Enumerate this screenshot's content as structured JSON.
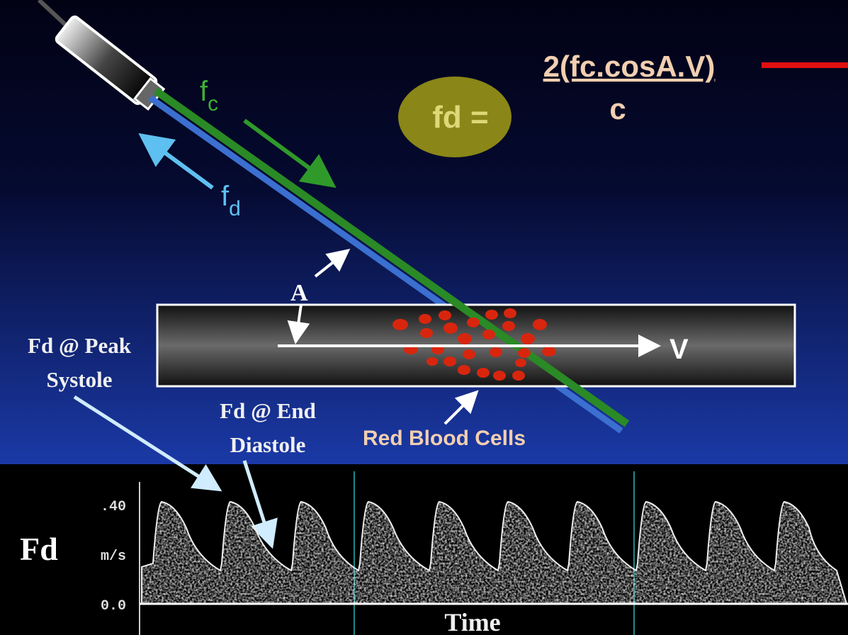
{
  "formula": {
    "lhs": "fd =",
    "numerator": "2(fc.cosA.V)",
    "denominator": "c"
  },
  "beam": {
    "transmit": {
      "main": "f",
      "sub": "c"
    },
    "received": {
      "main": "f",
      "sub": "d"
    }
  },
  "vessel": {
    "angle_label": "A",
    "velocity_label": "V",
    "cells_label": "Red Blood Cells"
  },
  "callouts": {
    "peak": [
      "Fd @ Peak",
      "Systole"
    ],
    "end": [
      "Fd @ End",
      "Diastole"
    ]
  },
  "spectrum": {
    "y_label": "Fd",
    "unit": "m/s",
    "top_tick": ".40",
    "bottom_tick": "0.0",
    "x_label": "Time"
  }
}
